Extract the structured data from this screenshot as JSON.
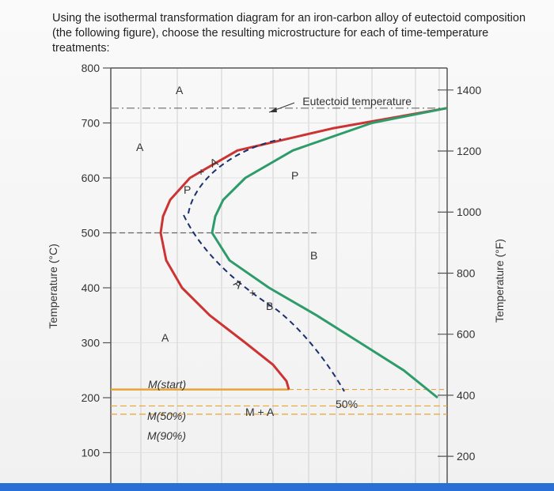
{
  "question": "Using the isothermal transformation diagram for an iron-carbon alloy of eutectoid composition (the following figure), choose the resulting microstructure for each of time-temperature treatments:",
  "colors": {
    "start_curve": "#cc3333",
    "finish_curve": "#2e9c6a",
    "martensite_line": "#e7a535",
    "path": "#1a2f6e",
    "grid": "#cfcfcf",
    "frame": "#555555"
  },
  "chart_data": {
    "type": "line",
    "ylabel_left": "Temperature (°C)",
    "ylabel_right": "Temperature (°F)",
    "yticks_c": [
      "800",
      "700",
      "600",
      "500",
      "400",
      "300",
      "200",
      "100"
    ],
    "yticks_f": [
      "1400",
      "1200",
      "1000",
      "800",
      "600",
      "400",
      "200"
    ],
    "ylim_c": [
      100,
      800
    ],
    "grid": true,
    "eutectoid_temp_c": 727,
    "ms_temp_c": 215,
    "m50_temp_c": 185,
    "m90_temp_c": 170,
    "series": [
      {
        "name": "",
        "role": "transformation start",
        "y_c": [
          727,
          690,
          650,
          600,
          560,
          530,
          500,
          450,
          400,
          350,
          300,
          260,
          230,
          215
        ]
      },
      {
        "name": "",
        "role": "transformation finish",
        "y_c": [
          727,
          700,
          650,
          600,
          560,
          530,
          500,
          450,
          400,
          350,
          300,
          250,
          200
        ]
      }
    ],
    "region_labels": {
      "austenite_top": "A",
      "austenite_left": "A",
      "austenite_low": "A",
      "pearlite": "P",
      "bainite": "B",
      "martensite_austenite": "M + A",
      "pearlite_path": "P",
      "path_austenite_1": "A",
      "path_austenite_2": "A",
      "path_bainite": "B",
      "plus_1": "+",
      "plus_2": "+"
    },
    "annotations": {
      "eutectoid": "Eutectoid temperature",
      "m_start": "M(start)",
      "m_50": "M(50%)",
      "m_90": "M(90%)",
      "fifty_percent": "50%"
    }
  }
}
